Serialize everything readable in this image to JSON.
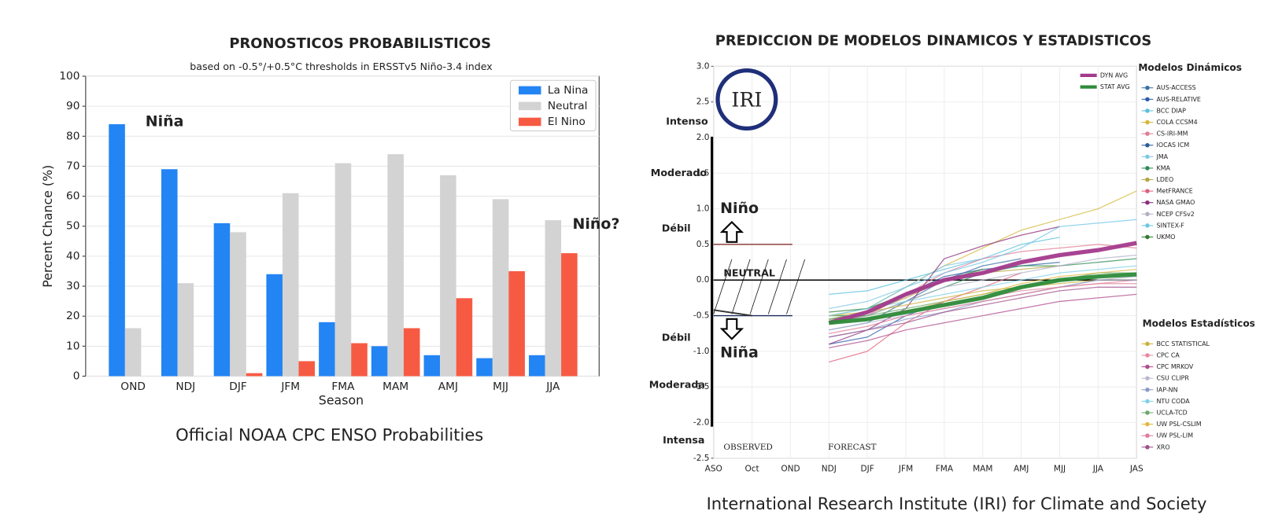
{
  "chart_data": [
    {
      "type": "bar",
      "title": "PRONOSTICOS PROBABILISTICOS",
      "subtitle": "based on -0.5°/+0.5°C thresholds in ERSSTv5 Niño-3.4 index",
      "x_label": "Season",
      "y_label": "Percent Chance (%)",
      "caption": "Official NOAA CPC ENSO Probabilities",
      "annotations": [
        "Niña",
        "Niño?"
      ],
      "categories": [
        "OND",
        "NDJ",
        "DJF",
        "JFM",
        "FMA",
        "MAM",
        "AMJ",
        "MJJ",
        "JJA"
      ],
      "series": [
        {
          "name": "La Nina",
          "color": "#2384f4",
          "values": [
            84,
            69,
            51,
            34,
            18,
            10,
            7,
            6,
            7
          ]
        },
        {
          "name": "Neutral",
          "color": "#d3d3d3",
          "values": [
            16,
            31,
            48,
            61,
            71,
            74,
            67,
            59,
            52
          ]
        },
        {
          "name": "El Nino",
          "color": "#f75a43",
          "values": [
            0,
            0,
            1,
            5,
            11,
            16,
            26,
            35,
            41
          ]
        }
      ],
      "ylim": [
        0,
        100
      ],
      "yticks": [
        0,
        10,
        20,
        30,
        40,
        50,
        60,
        70,
        80,
        90,
        100
      ],
      "grid": true,
      "legend": "upper right"
    },
    {
      "type": "line",
      "title": "PREDICCION DE MODELOS DINAMICOS Y ESTADISTICOS",
      "caption": "International Research Institute (IRI) for Climate and Society",
      "logo_text": "IRI",
      "el_nino_labels": [
        "Intenso",
        "Moderado",
        "Débil"
      ],
      "la_nina_labels": [
        "Débil",
        "Moderada",
        "Intensa"
      ],
      "phase_labels": [
        "Niño",
        "NEUTRAL",
        "Niña"
      ],
      "period_labels": [
        "OBSERVED",
        "FORECAST"
      ],
      "categories": [
        "ASO",
        "Oct",
        "OND",
        "NDJ",
        "DJF",
        "JFM",
        "FMA",
        "MAM",
        "AMJ",
        "MJJ",
        "JJA",
        "JAS"
      ],
      "ylim": [
        -2.5,
        3.0
      ],
      "yticks": [
        -2.5,
        {
          "value": -2,
          "label": "-2.0"
        },
        -1.5,
        {
          "value": -1,
          "label": "-1.0"
        },
        -0.5,
        {
          "value": 0,
          "label": "0.0"
        },
        0.5,
        {
          "value": 1,
          "label": "1.0"
        },
        1.5,
        {
          "value": 2,
          "label": "2.0"
        },
        2.5,
        {
          "value": 3,
          "label": "3.0"
        }
      ],
      "grid": true,
      "observed": [
        -0.42,
        -0.5,
        null,
        null,
        null,
        null,
        null,
        null,
        null,
        null,
        null,
        null
      ],
      "series": [
        {
          "name": "DYN AVG",
          "color": "#a33a8c",
          "values": [
            null,
            null,
            null,
            -0.6,
            -0.45,
            -0.2,
            0.0,
            0.1,
            0.25,
            0.35,
            0.42,
            0.52
          ]
        },
        {
          "name": "STAT AVG",
          "color": "#2e8b3a",
          "values": [
            null,
            null,
            null,
            -0.6,
            -0.55,
            -0.45,
            -0.35,
            -0.25,
            -0.1,
            0.0,
            0.05,
            0.08
          ]
        }
      ],
      "dynamic_title": "Modelos Dinámicos",
      "dynamic_series": [
        {
          "name": "AUS-ACCESS",
          "color": "#3a6ea5",
          "values": [
            null,
            null,
            null,
            -0.7,
            -0.6,
            -0.3,
            0.0,
            0.2,
            0.3,
            null,
            null,
            null
          ]
        },
        {
          "name": "AUS-RELATIVE",
          "color": "#2a5caa",
          "values": [
            null,
            null,
            null,
            -0.9,
            -0.8,
            -0.5,
            -0.3,
            null,
            null,
            null,
            null,
            null
          ]
        },
        {
          "name": "BCC DIAP",
          "color": "#5bc0de",
          "values": [
            null,
            null,
            null,
            -0.2,
            -0.15,
            0.0,
            0.15,
            0.3,
            0.5,
            0.6,
            null,
            null
          ]
        },
        {
          "name": "COLA CCSM4",
          "color": "#d4b83a",
          "values": [
            null,
            null,
            null,
            -0.5,
            -0.4,
            -0.1,
            0.2,
            0.45,
            0.7,
            0.85,
            1.0,
            1.25
          ]
        },
        {
          "name": "CS-IRI-MM",
          "color": "#e07b91",
          "values": [
            null,
            null,
            null,
            -0.6,
            -0.5,
            -0.2,
            0.1,
            0.3,
            0.4,
            0.45,
            0.5,
            0.45
          ]
        },
        {
          "name": "IOCAS ICM",
          "color": "#2b5d9c",
          "values": [
            null,
            null,
            null,
            -0.55,
            -0.45,
            -0.2,
            0.05,
            0.15,
            0.2,
            0.25,
            null,
            null
          ]
        },
        {
          "name": "JMA",
          "color": "#7ec8e3",
          "values": [
            null,
            null,
            null,
            -0.4,
            -0.3,
            -0.1,
            0.2,
            0.3,
            null,
            null,
            null,
            null
          ]
        },
        {
          "name": "KMA",
          "color": "#2e8b57",
          "values": [
            null,
            null,
            null,
            -0.5,
            -0.5,
            -0.3,
            -0.1,
            0.1,
            0.2,
            0.2,
            0.25,
            0.3
          ]
        },
        {
          "name": "LDEO",
          "color": "#b5a642",
          "values": [
            null,
            null,
            null,
            -0.55,
            -0.45,
            -0.25,
            0.0,
            0.1,
            0.15,
            0.2,
            null,
            null
          ]
        },
        {
          "name": "MetFRANCE",
          "color": "#e0607e",
          "values": [
            null,
            null,
            null,
            -1.15,
            -1.0,
            -0.6,
            -0.3,
            -0.1,
            0.1,
            null,
            null,
            null
          ]
        },
        {
          "name": "NASA GMAO",
          "color": "#8b2c7a",
          "values": [
            null,
            null,
            null,
            -0.9,
            -0.7,
            -0.4,
            0.3,
            0.48,
            0.63,
            0.75,
            null,
            null
          ]
        },
        {
          "name": "NCEP CFSv2",
          "color": "#b0b0c8",
          "values": [
            null,
            null,
            null,
            -0.6,
            -0.5,
            -0.3,
            -0.1,
            0.0,
            0.1,
            0.2,
            0.3,
            0.35
          ]
        },
        {
          "name": "SINTEX-F",
          "color": "#6ec6e8",
          "values": [
            null,
            null,
            null,
            -0.5,
            -0.4,
            -0.1,
            0.1,
            0.25,
            0.45,
            0.75,
            0.8,
            0.85
          ]
        },
        {
          "name": "UKMO",
          "color": "#2f7d32",
          "values": [
            null,
            null,
            null,
            -0.45,
            -0.4,
            -0.2,
            0.0,
            0.15,
            null,
            null,
            null,
            null
          ]
        }
      ],
      "statistical_title": "Modelos Estadísticos",
      "statistical_series": [
        {
          "name": "BCC STATISTICAL",
          "color": "#c9b23a",
          "values": [
            null,
            null,
            null,
            -0.5,
            -0.45,
            -0.35,
            -0.25,
            -0.15,
            -0.1,
            -0.05,
            0.0,
            0.0
          ]
        },
        {
          "name": "CPC CA",
          "color": "#e58aa0",
          "values": [
            null,
            null,
            null,
            -0.6,
            -0.55,
            -0.45,
            -0.35,
            -0.25,
            -0.15,
            -0.1,
            -0.05,
            0.0
          ]
        },
        {
          "name": "CPC MRKOV",
          "color": "#b04a8c",
          "values": [
            null,
            null,
            null,
            -0.95,
            -0.85,
            -0.7,
            -0.6,
            -0.5,
            -0.4,
            -0.3,
            -0.25,
            -0.2
          ]
        },
        {
          "name": "CSU CLIPR",
          "color": "#b8b8d0",
          "values": [
            null,
            null,
            null,
            -0.7,
            -0.6,
            -0.5,
            -0.4,
            -0.3,
            -0.2,
            -0.1,
            0.0,
            0.05
          ]
        },
        {
          "name": "IAP-NN",
          "color": "#8a9ac8",
          "values": [
            null,
            null,
            null,
            -0.8,
            -0.7,
            -0.55,
            -0.45,
            -0.3,
            -0.2,
            -0.1,
            0.0,
            0.0
          ]
        },
        {
          "name": "NTU CODA",
          "color": "#80d0e8",
          "values": [
            null,
            null,
            null,
            -0.5,
            -0.4,
            -0.3,
            -0.2,
            -0.1,
            0.0,
            0.1,
            0.15,
            0.2
          ]
        },
        {
          "name": "UCLA-TCD",
          "color": "#6aa86a",
          "values": [
            null,
            null,
            null,
            -0.55,
            -0.5,
            -0.4,
            -0.3,
            -0.2,
            -0.1,
            0.0,
            0.1,
            0.1
          ]
        },
        {
          "name": "UW PSL-CSLIM",
          "color": "#e0b840",
          "values": [
            null,
            null,
            null,
            -0.6,
            -0.55,
            -0.45,
            -0.3,
            -0.2,
            -0.05,
            0.05,
            0.1,
            0.15
          ]
        },
        {
          "name": "UW PSL-LIM",
          "color": "#e07a9a",
          "values": [
            null,
            null,
            null,
            -0.75,
            -0.65,
            -0.5,
            -0.4,
            -0.3,
            -0.2,
            -0.1,
            -0.05,
            -0.05
          ]
        },
        {
          "name": "XRO",
          "color": "#a0508c",
          "values": [
            null,
            null,
            null,
            -0.8,
            -0.7,
            -0.6,
            -0.45,
            -0.35,
            -0.25,
            -0.15,
            -0.1,
            -0.1
          ]
        }
      ]
    }
  ]
}
